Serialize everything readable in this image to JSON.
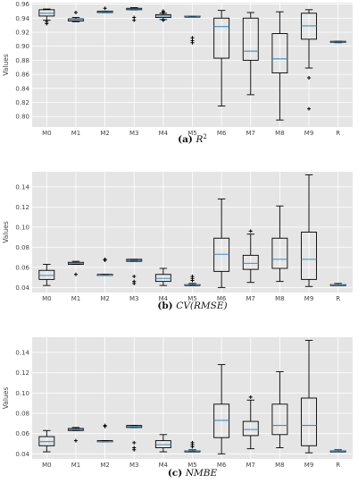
{
  "chart_data": [
    {
      "type": "box",
      "caption_letter": "(a)",
      "caption_text": "R",
      "caption_sup": "2",
      "ylabel": "Values",
      "ylim": [
        0.785,
        0.962
      ],
      "yticks": [
        0.8,
        0.82,
        0.84,
        0.86,
        0.88,
        0.9,
        0.92,
        0.94,
        0.96
      ],
      "grid": true,
      "categories": [
        "M0",
        "M1",
        "M2",
        "M3",
        "M4",
        "M5",
        "M6",
        "M7",
        "M8",
        "M9",
        "R"
      ],
      "boxes": [
        {
          "min": 0.937,
          "q1": 0.943,
          "median": 0.947,
          "q3": 0.952,
          "max": 0.953,
          "outliers": [
            0.935,
            0.932
          ]
        },
        {
          "min": 0.935,
          "q1": 0.936,
          "median": 0.938,
          "q3": 0.939,
          "max": 0.941,
          "outliers": [
            0.948
          ]
        },
        {
          "min": 0.948,
          "q1": 0.948,
          "median": 0.949,
          "q3": 0.95,
          "max": 0.95,
          "outliers": [
            0.954
          ]
        },
        {
          "min": 0.952,
          "q1": 0.952,
          "median": 0.953,
          "q3": 0.954,
          "max": 0.955,
          "outliers": [
            0.941,
            0.937
          ]
        },
        {
          "min": 0.938,
          "q1": 0.941,
          "median": 0.943,
          "q3": 0.945,
          "max": 0.947,
          "outliers": [
            0.95,
            0.948,
            0.937
          ]
        },
        {
          "min": 0.942,
          "q1": 0.942,
          "median": 0.943,
          "q3": 0.943,
          "max": 0.943,
          "outliers": [
            0.912,
            0.908,
            0.905
          ]
        },
        {
          "min": 0.815,
          "q1": 0.883,
          "median": 0.928,
          "q3": 0.94,
          "max": 0.951,
          "outliers": []
        },
        {
          "min": 0.831,
          "q1": 0.88,
          "median": 0.893,
          "q3": 0.94,
          "max": 0.948,
          "outliers": []
        },
        {
          "min": 0.795,
          "q1": 0.862,
          "median": 0.882,
          "q3": 0.918,
          "max": 0.949,
          "outliers": []
        },
        {
          "min": 0.869,
          "q1": 0.91,
          "median": 0.929,
          "q3": 0.947,
          "max": 0.952,
          "outliers": [
            0.855,
            0.811
          ]
        },
        {
          "min": 0.905,
          "q1": 0.906,
          "median": 0.906,
          "q3": 0.907,
          "max": 0.907,
          "outliers": []
        }
      ]
    },
    {
      "type": "box",
      "caption_letter": "(b)",
      "caption_text": "CV(RMSE)",
      "caption_sup": "",
      "ylabel": "Values",
      "ylim": [
        0.035,
        0.155
      ],
      "yticks": [
        0.04,
        0.06,
        0.08,
        0.1,
        0.12,
        0.14
      ],
      "grid": true,
      "categories": [
        "M0",
        "M1",
        "M2",
        "M3",
        "M4",
        "M5",
        "M6",
        "M7",
        "M8",
        "M9",
        "R"
      ],
      "boxes": [
        {
          "min": 0.042,
          "q1": 0.048,
          "median": 0.052,
          "q3": 0.057,
          "max": 0.063,
          "outliers": []
        },
        {
          "min": 0.063,
          "q1": 0.063,
          "median": 0.064,
          "q3": 0.065,
          "max": 0.066,
          "outliers": [
            0.053
          ]
        },
        {
          "min": 0.052,
          "q1": 0.052,
          "median": 0.052,
          "q3": 0.053,
          "max": 0.053,
          "outliers": [
            0.067,
            0.068
          ]
        },
        {
          "min": 0.066,
          "q1": 0.066,
          "median": 0.067,
          "q3": 0.068,
          "max": 0.068,
          "outliers": [
            0.051,
            0.046,
            0.044
          ]
        },
        {
          "min": 0.042,
          "q1": 0.046,
          "median": 0.049,
          "q3": 0.053,
          "max": 0.059,
          "outliers": []
        },
        {
          "min": 0.042,
          "q1": 0.042,
          "median": 0.043,
          "q3": 0.043,
          "max": 0.044,
          "outliers": [
            0.047,
            0.049,
            0.051
          ]
        },
        {
          "min": 0.04,
          "q1": 0.056,
          "median": 0.073,
          "q3": 0.089,
          "max": 0.128,
          "outliers": []
        },
        {
          "min": 0.045,
          "q1": 0.058,
          "median": 0.064,
          "q3": 0.072,
          "max": 0.093,
          "outliers": [
            0.096
          ]
        },
        {
          "min": 0.046,
          "q1": 0.059,
          "median": 0.068,
          "q3": 0.089,
          "max": 0.121,
          "outliers": []
        },
        {
          "min": 0.041,
          "q1": 0.048,
          "median": 0.068,
          "q3": 0.095,
          "max": 0.152,
          "outliers": []
        },
        {
          "min": 0.043,
          "q1": 0.043,
          "median": 0.043,
          "q3": 0.043,
          "max": 0.044,
          "outliers": []
        }
      ]
    },
    {
      "type": "box",
      "caption_letter": "(c)",
      "caption_text": "NMBE",
      "caption_sup": "",
      "ylabel": "Values",
      "ylim": [
        0.035,
        0.155
      ],
      "yticks": [
        0.04,
        0.06,
        0.08,
        0.1,
        0.12,
        0.14
      ],
      "grid": true,
      "categories": [
        "M0",
        "M1",
        "M2",
        "M3",
        "M4",
        "M5",
        "M6",
        "M7",
        "M8",
        "M9",
        "R"
      ],
      "boxes": [
        {
          "min": 0.042,
          "q1": 0.048,
          "median": 0.052,
          "q3": 0.057,
          "max": 0.063,
          "outliers": []
        },
        {
          "min": 0.063,
          "q1": 0.063,
          "median": 0.064,
          "q3": 0.065,
          "max": 0.066,
          "outliers": [
            0.053
          ]
        },
        {
          "min": 0.052,
          "q1": 0.052,
          "median": 0.052,
          "q3": 0.053,
          "max": 0.053,
          "outliers": [
            0.067,
            0.068
          ]
        },
        {
          "min": 0.066,
          "q1": 0.066,
          "median": 0.067,
          "q3": 0.068,
          "max": 0.068,
          "outliers": [
            0.051,
            0.046,
            0.044
          ]
        },
        {
          "min": 0.042,
          "q1": 0.046,
          "median": 0.049,
          "q3": 0.053,
          "max": 0.059,
          "outliers": []
        },
        {
          "min": 0.042,
          "q1": 0.042,
          "median": 0.043,
          "q3": 0.043,
          "max": 0.044,
          "outliers": [
            0.047,
            0.049,
            0.051
          ]
        },
        {
          "min": 0.04,
          "q1": 0.056,
          "median": 0.073,
          "q3": 0.089,
          "max": 0.128,
          "outliers": []
        },
        {
          "min": 0.045,
          "q1": 0.058,
          "median": 0.064,
          "q3": 0.072,
          "max": 0.093,
          "outliers": [
            0.096
          ]
        },
        {
          "min": 0.046,
          "q1": 0.059,
          "median": 0.068,
          "q3": 0.089,
          "max": 0.121,
          "outliers": []
        },
        {
          "min": 0.041,
          "q1": 0.048,
          "median": 0.068,
          "q3": 0.095,
          "max": 0.152,
          "outliers": []
        },
        {
          "min": 0.043,
          "q1": 0.043,
          "median": 0.043,
          "q3": 0.043,
          "max": 0.044,
          "outliers": []
        }
      ]
    }
  ],
  "colors": {
    "panel_background": "#e5e5e5",
    "grid": "#ffffff",
    "box_outline": "#000000",
    "median": "#3e8ec4",
    "text": "#444444"
  }
}
